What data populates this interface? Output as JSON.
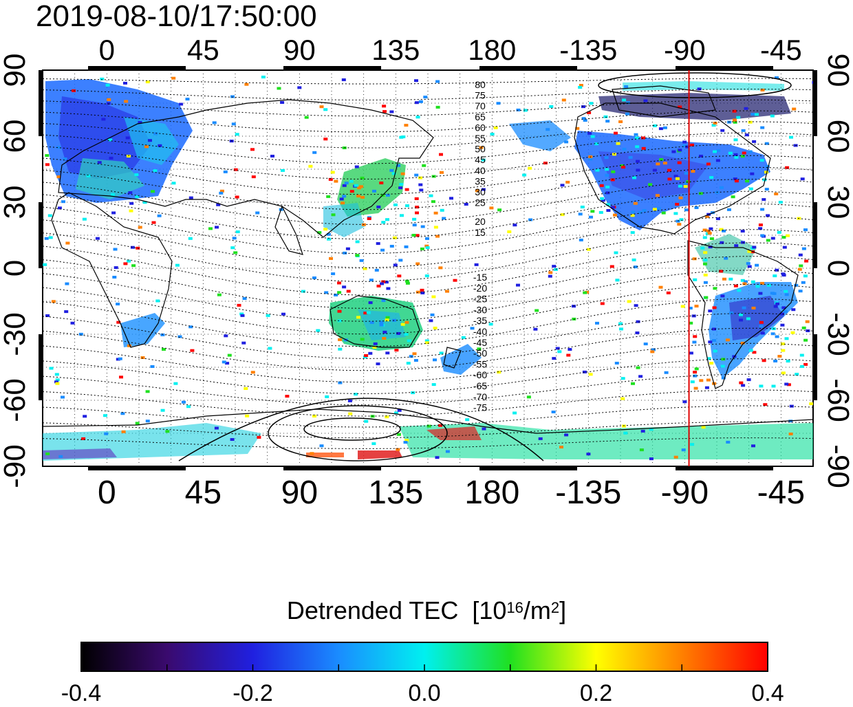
{
  "timestamp": "2019-08-10/17:50:00",
  "map": {
    "lon_tick_labels": [
      "0",
      "45",
      "90",
      "135",
      "180",
      "-135",
      "-90",
      "-45"
    ],
    "lat_tick_labels": [
      "90",
      "60",
      "30",
      "0",
      "-30",
      "-60",
      "-90"
    ],
    "contour_labels_north": [
      "80",
      "75",
      "70",
      "65",
      "60",
      "55",
      "50",
      "45",
      "40",
      "35",
      "30",
      "25",
      "20",
      "15"
    ],
    "contour_labels_south": [
      "-15",
      "-20",
      "-25",
      "-30",
      "-35",
      "-40",
      "-45",
      "-50",
      "-55",
      "-60",
      "-65",
      "-70",
      "-75"
    ],
    "marker_longitude": -88,
    "marker_color": "#e00000"
  },
  "colorbar": {
    "title": "Detrended TEC",
    "unit_prefix": "[10",
    "unit_exp1": "16",
    "unit_mid": "/m",
    "unit_exp2": "2",
    "unit_suffix": "]",
    "ticks": [
      "-0.4",
      "-0.2",
      "0.0",
      "0.2",
      "0.4"
    ],
    "range": [
      -0.4,
      0.4
    ],
    "colors": [
      "#000000",
      "#3a0a6e",
      "#2020e0",
      "#1a8cff",
      "#00f0f0",
      "#20e020",
      "#ffff00",
      "#ff8000",
      "#ff0000"
    ]
  }
}
